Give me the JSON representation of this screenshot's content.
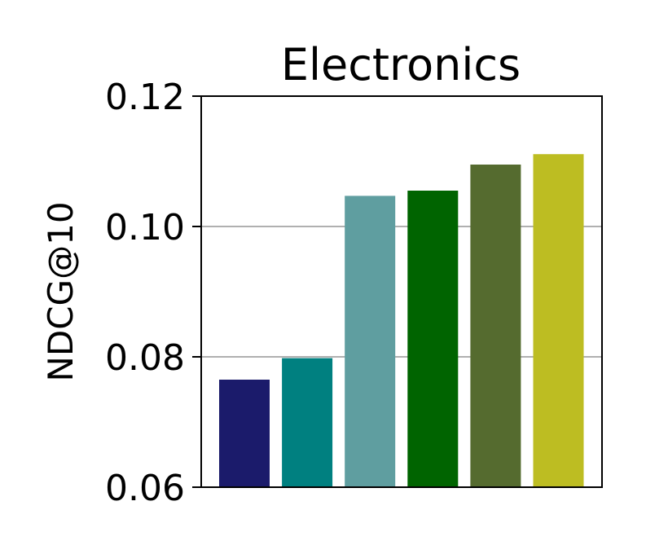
{
  "chart_data": {
    "type": "bar",
    "title": "Electronics",
    "xlabel": "",
    "ylabel": "NDCG@10",
    "ylim": [
      0.06,
      0.12
    ],
    "yticks": [
      "0.06",
      "0.08",
      "0.10",
      "0.12"
    ],
    "grid": "horizontal",
    "values": [
      0.0765,
      0.0798,
      0.1047,
      0.1055,
      0.1095,
      0.1111
    ],
    "colors": [
      "#1b1b6b",
      "#008080",
      "#5f9ea0",
      "#006400",
      "#556b2f",
      "#bdbd22"
    ]
  }
}
